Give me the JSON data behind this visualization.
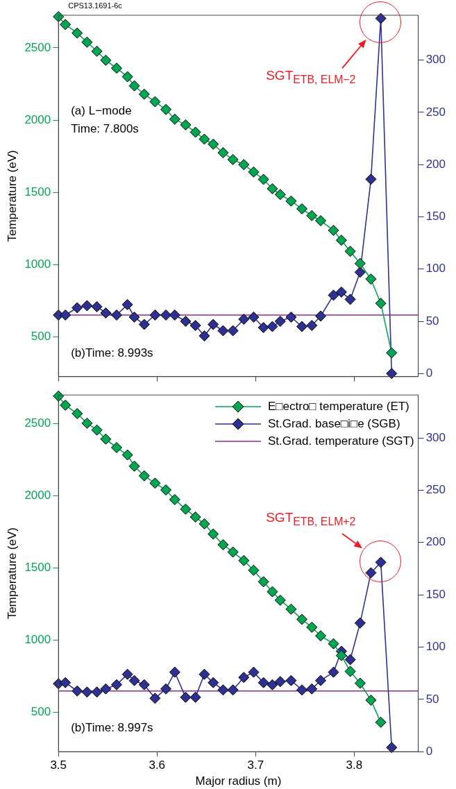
{
  "chart_data": [
    {
      "type": "line",
      "ylabel": "Temperature (eV)",
      "marker": "diamond",
      "grid": false,
      "legend": false,
      "tick_labels": "y",
      "x": [
        3.5,
        3.507,
        3.519,
        3.529,
        3.539,
        3.548,
        3.559,
        3.57,
        3.577,
        3.587,
        3.598,
        3.609,
        3.618,
        3.629,
        3.639,
        3.648,
        3.657,
        3.667,
        3.677,
        3.688,
        3.698,
        3.708,
        3.717,
        3.725,
        3.736,
        3.747,
        3.757,
        3.766,
        3.779,
        3.787,
        3.796,
        3.806,
        3.817,
        3.827,
        3.838
      ],
      "series": [
        {
          "color": "#00a651",
          "values": [
            2715,
            2661,
            2602,
            2539,
            2476,
            2414,
            2359,
            2300,
            2237,
            2179,
            2127,
            2073,
            2006,
            1967,
            1916,
            1868,
            1833,
            1774,
            1727,
            1692,
            1641,
            1590,
            1525,
            1485,
            1440,
            1386,
            1339,
            1304,
            1237,
            1169,
            1092,
            1008,
            900,
            732,
            390
          ]
        },
        {
          "color": "#2e3192",
          "axis": "y2",
          "values": [
            56,
            56,
            63,
            65,
            64,
            58,
            56,
            66,
            54,
            47,
            56,
            56,
            56,
            50,
            46,
            36,
            47,
            41,
            41,
            52,
            54,
            44,
            45,
            50,
            54,
            45,
            46,
            55,
            75,
            78,
            71,
            97,
            186,
            340,
            0
          ]
        }
      ],
      "ref_lines": [
        {
          "axis": "y2",
          "value": 56,
          "color": "#92278f"
        }
      ],
      "xlim": [
        3.5,
        3.865
      ],
      "xticks": [
        3.5,
        3.6,
        3.7,
        3.8
      ],
      "ylim": [
        225,
        2725
      ],
      "yticks": [
        500,
        1000,
        1500,
        2000,
        2500
      ],
      "y2lim": [
        -3,
        343
      ],
      "y2ticks": [
        0,
        50,
        100,
        150,
        200,
        250,
        300
      ],
      "annotations": [
        "CPS13.1691-6c",
        "(a) L−mode",
        "Time: 7.800s",
        "(b)Time: 8.993s",
        "SGT$_{ETB, ELM−2}$"
      ]
    },
    {
      "type": "line",
      "xlabel": "Major radius (m)",
      "ylabel": "Temperature (eV)",
      "marker": "diamond",
      "grid": false,
      "legend": "top right",
      "x": [
        3.5,
        3.507,
        3.519,
        3.529,
        3.539,
        3.548,
        3.559,
        3.57,
        3.577,
        3.587,
        3.598,
        3.609,
        3.618,
        3.629,
        3.639,
        3.648,
        3.657,
        3.667,
        3.677,
        3.688,
        3.698,
        3.708,
        3.717,
        3.725,
        3.736,
        3.747,
        3.757,
        3.766,
        3.779,
        3.787,
        3.796,
        3.806,
        3.817,
        3.827,
        3.838
      ],
      "series": [
        {
          "name": "E□ectro□ temperature (ET)",
          "color": "#00a651",
          "values": [
            2692,
            2629,
            2571,
            2504,
            2457,
            2394,
            2335,
            2284,
            2206,
            2139,
            2088,
            2041,
            1974,
            1908,
            1853,
            1806,
            1735,
            1661,
            1610,
            1551,
            1484,
            1404,
            1335,
            1276,
            1214,
            1143,
            1088,
            1029,
            974,
            892,
            782,
            700,
            582,
            429,
            null
          ]
        },
        {
          "name": "St.Grad. base□i□e (SGB)",
          "color": "#2e3192",
          "axis": "y2",
          "values": [
            65,
            66,
            58,
            57,
            57,
            60,
            64,
            74,
            68,
            64,
            51,
            60,
            76,
            52,
            52,
            74,
            66,
            59,
            59,
            71,
            76,
            66,
            64,
            67,
            68,
            59,
            60,
            68,
            76,
            96,
            88,
            123,
            171,
            181,
            4
          ]
        }
      ],
      "ref_lines": [
        {
          "axis": "y2",
          "value": 58,
          "label": "St.Grad. temperature (SGT)",
          "color": "#92278f"
        }
      ],
      "xlim": [
        3.5,
        3.865
      ],
      "xticks": [
        3.5,
        3.6,
        3.7,
        3.8
      ],
      "ylim": [
        225,
        2700
      ],
      "yticks": [
        500,
        1000,
        1500,
        2000,
        2500
      ],
      "y2lim": [
        0,
        341
      ],
      "y2ticks": [
        0,
        50,
        100,
        150,
        200,
        250,
        300
      ],
      "annotations": [
        "(b)Time: 8.997s",
        "SGT$_{ETB, ELM+2}$"
      ]
    }
  ]
}
